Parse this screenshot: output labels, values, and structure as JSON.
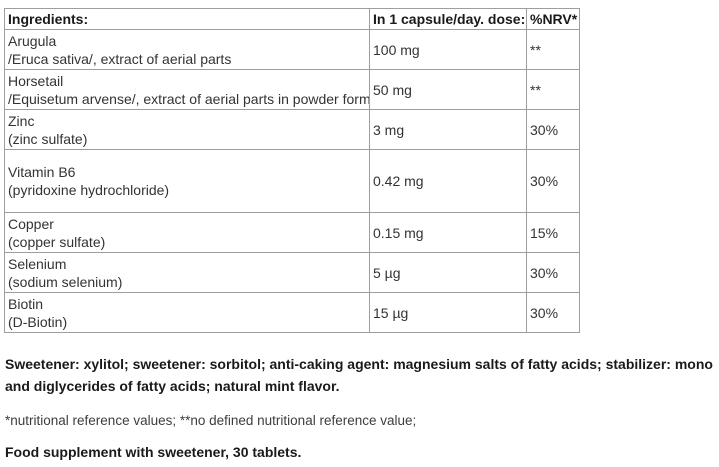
{
  "table": {
    "headers": [
      "Ingredients:",
      "In 1 capsule/day. dose:",
      "%NRV*"
    ],
    "rows": [
      {
        "name_lines": [
          "Arugula",
          "/Eruca sativa/, extract of aerial parts"
        ],
        "dose": "100 mg",
        "nrv": "**"
      },
      {
        "name_lines": [
          "Horsetail",
          "/Equisetum arvense/, extract of aerial parts in powder form"
        ],
        "dose": "50 mg",
        "nrv": "**"
      },
      {
        "name_lines": [
          "Zinc",
          "(zinc sulfate)"
        ],
        "dose": "3 mg",
        "nrv": "30%"
      },
      {
        "name_lines": [
          "Vitamin B6",
          "(pyridoxine hydrochloride)"
        ],
        "dose": "0.42 mg",
        "nrv": "30%"
      },
      {
        "name_lines": [
          "Copper",
          "(copper sulfate)"
        ],
        "dose": "0.15 mg",
        "nrv": "15%"
      },
      {
        "name_lines": [
          "Selenium",
          "(sodium selenium)"
        ],
        "dose": "5 µg",
        "nrv": "30%"
      },
      {
        "name_lines": [
          "Biotin",
          "(D-Biotin)"
        ],
        "dose": "15 µg",
        "nrv": "30%"
      }
    ]
  },
  "notes": {
    "additives": "Sweetener: xylitol; sweetener: sorbitol; anti-caking agent: magnesium salts of fatty acids; stabilizer: mono and diglycerides of fatty acids; natural mint flavor.",
    "footnote": "*nutritional reference values; **no defined nutritional reference value;",
    "supplement": "Food supplement with sweetener, 30 tablets."
  },
  "colors": {
    "border": "#9e9e9e",
    "text": "#333333",
    "bold_text": "#1a1a1a",
    "background": "#ffffff"
  }
}
